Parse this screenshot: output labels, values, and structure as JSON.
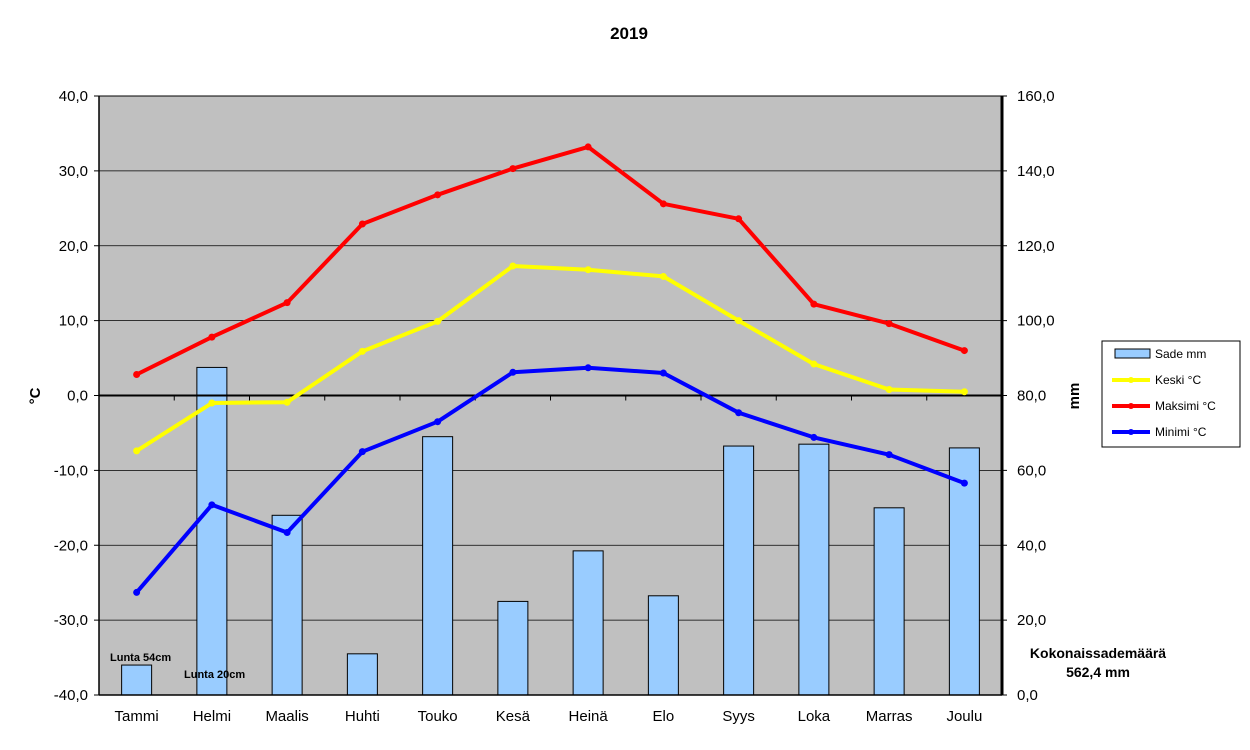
{
  "chart_data": {
    "type": "bar",
    "title": "2019",
    "categories": [
      "Tammi",
      "Helmi",
      "Maalis",
      "Huhti",
      "Touko",
      "Kesä",
      "Heinä",
      "Elo",
      "Syys",
      "Loka",
      "Marras",
      "Joulu"
    ],
    "y_left": {
      "label": "°C",
      "ylim": [
        -40,
        40
      ],
      "ticks": [
        "40,0",
        "30,0",
        "20,0",
        "10,0",
        "0,0",
        "-10,0",
        "-20,0",
        "-30,0",
        "-40,0"
      ]
    },
    "y_right": {
      "label": "mm",
      "ylim": [
        0,
        160
      ],
      "ticks": [
        "160,0",
        "140,0",
        "120,0",
        "100,0",
        "80,0",
        "60,0",
        "40,0",
        "20,0",
        "0,0"
      ]
    },
    "bar_series": {
      "name": "Sade mm",
      "axis": "right",
      "color": "#99ccff",
      "values": [
        8,
        87.5,
        48,
        11,
        69,
        25,
        38.5,
        26.5,
        66.5,
        67,
        50,
        66
      ]
    },
    "line_series": [
      {
        "name": "Keski °C",
        "axis": "left",
        "color": "#ffff00",
        "values": [
          -7.4,
          -1.0,
          -0.9,
          5.9,
          9.9,
          17.3,
          16.8,
          15.9,
          10.0,
          4.2,
          0.8,
          0.5
        ]
      },
      {
        "name": "Maksimi °C",
        "axis": "left",
        "color": "#ff0000",
        "values": [
          2.8,
          7.8,
          12.4,
          22.9,
          26.8,
          30.3,
          33.2,
          25.6,
          23.6,
          12.2,
          9.6,
          6.0
        ]
      },
      {
        "name": "Minimi °C",
        "axis": "left",
        "color": "#0000ff",
        "values": [
          -26.3,
          -14.6,
          -18.3,
          -7.5,
          -3.5,
          3.1,
          3.7,
          3.0,
          -2.3,
          -5.6,
          -7.9,
          -11.7
        ]
      }
    ],
    "annotations": [
      {
        "text": "Lunta 54cm",
        "category": "Tammi"
      },
      {
        "text": "Lunta 20cm",
        "category": "Helmi"
      }
    ],
    "total_label": "Kokonaissademäärä",
    "total_value": "562,4 mm",
    "grid": true,
    "legend_position": "right"
  }
}
